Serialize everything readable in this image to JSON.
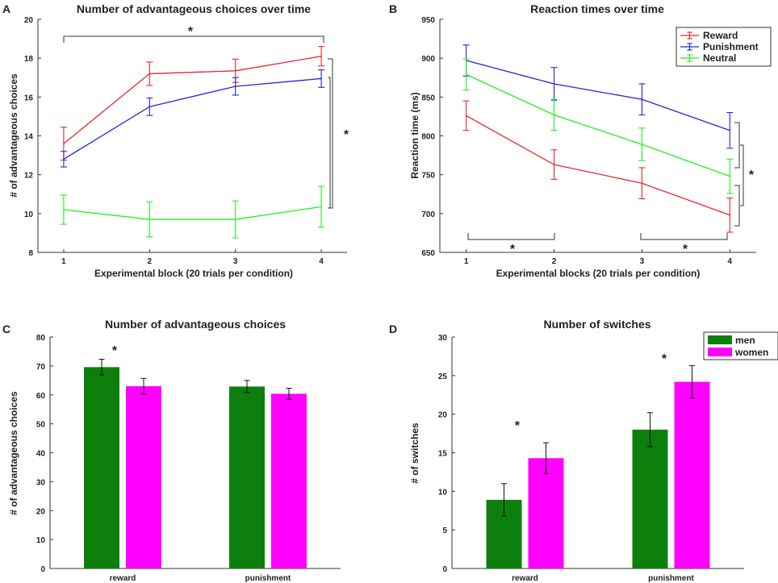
{
  "colors": {
    "reward": "#e8272c",
    "punishment": "#2424d8",
    "neutral": "#22ee22",
    "men": "#0d7f0d",
    "women": "#ff00ff"
  },
  "chart_data": [
    {
      "panel": "A",
      "type": "line",
      "title": "Number of advantageous choices over time",
      "xlabel": "Experimental block (20 trials per condition)",
      "ylabel": "# of advantageous choices",
      "x": [
        1,
        2,
        3,
        4
      ],
      "xlim": [
        0.7,
        4.3
      ],
      "ylim": [
        8,
        20
      ],
      "yticks": [
        8,
        10,
        12,
        14,
        16,
        18,
        20
      ],
      "series": [
        {
          "name": "Reward",
          "color_key": "reward",
          "values": [
            13.6,
            17.2,
            17.35,
            18.1
          ],
          "err": [
            0.85,
            0.6,
            0.6,
            0.5
          ]
        },
        {
          "name": "Punishment",
          "color_key": "punishment",
          "values": [
            12.8,
            15.5,
            16.55,
            16.95
          ],
          "err": [
            0.4,
            0.45,
            0.45,
            0.45
          ]
        },
        {
          "name": "Neutral",
          "color_key": "neutral",
          "values": [
            10.2,
            9.7,
            9.7,
            10.35
          ],
          "err": [
            0.75,
            0.9,
            0.95,
            1.05
          ]
        }
      ],
      "annotations": {
        "top_star": "*",
        "right_star": "*"
      }
    },
    {
      "panel": "B",
      "type": "line",
      "title": "Reaction times over time",
      "xlabel": "Experimental blocks (20 trials per condition)",
      "ylabel": "Reaction time (ms)",
      "x": [
        1,
        2,
        3,
        4
      ],
      "xlim": [
        0.7,
        4.3
      ],
      "ylim": [
        650,
        950
      ],
      "yticks": [
        650,
        700,
        750,
        800,
        850,
        900,
        950
      ],
      "series": [
        {
          "name": "Reward",
          "color_key": "reward",
          "values": [
            826,
            763,
            739,
            698
          ],
          "err": [
            19,
            19,
            20,
            22
          ]
        },
        {
          "name": "Punishment",
          "color_key": "punishment",
          "values": [
            897,
            867,
            847,
            807
          ],
          "err": [
            20,
            21,
            20,
            23
          ]
        },
        {
          "name": "Neutral",
          "color_key": "neutral",
          "values": [
            879,
            827,
            789,
            748
          ],
          "err": [
            20,
            20,
            21,
            22
          ]
        }
      ],
      "legend": [
        "Reward",
        "Punishment",
        "Neutral"
      ],
      "annotations": {
        "bottom_star_left": "*",
        "bottom_star_right": "*",
        "right_star": "*"
      }
    },
    {
      "panel": "C",
      "type": "bar",
      "title": "Number of advantageous choices",
      "xlabel": "",
      "ylabel": "# of advantageous choices",
      "categories": [
        "reward",
        "punishment"
      ],
      "ylim": [
        0,
        80
      ],
      "yticks": [
        0,
        10,
        20,
        30,
        40,
        50,
        60,
        70,
        80
      ],
      "series": [
        {
          "name": "men",
          "color_key": "men",
          "values": [
            69.6,
            62.9
          ],
          "err": [
            2.7,
            2.1
          ]
        },
        {
          "name": "women",
          "color_key": "women",
          "values": [
            63.0,
            60.4
          ],
          "err": [
            2.7,
            1.9
          ]
        }
      ],
      "annotations": {
        "star": "*"
      }
    },
    {
      "panel": "D",
      "type": "bar",
      "title": "Number of switches",
      "xlabel": "",
      "ylabel": "# of switches",
      "categories": [
        "reward",
        "punishment"
      ],
      "ylim": [
        0,
        30
      ],
      "yticks": [
        0,
        5,
        10,
        15,
        20,
        25,
        30
      ],
      "series": [
        {
          "name": "men",
          "color_key": "men",
          "values": [
            8.9,
            18.0
          ],
          "err": [
            2.1,
            2.2
          ]
        },
        {
          "name": "women",
          "color_key": "women",
          "values": [
            14.3,
            24.2
          ],
          "err": [
            2.0,
            2.1
          ]
        }
      ],
      "legend": [
        "men",
        "women"
      ],
      "annotations": {
        "star_reward": "*",
        "star_punishment": "*"
      }
    }
  ]
}
